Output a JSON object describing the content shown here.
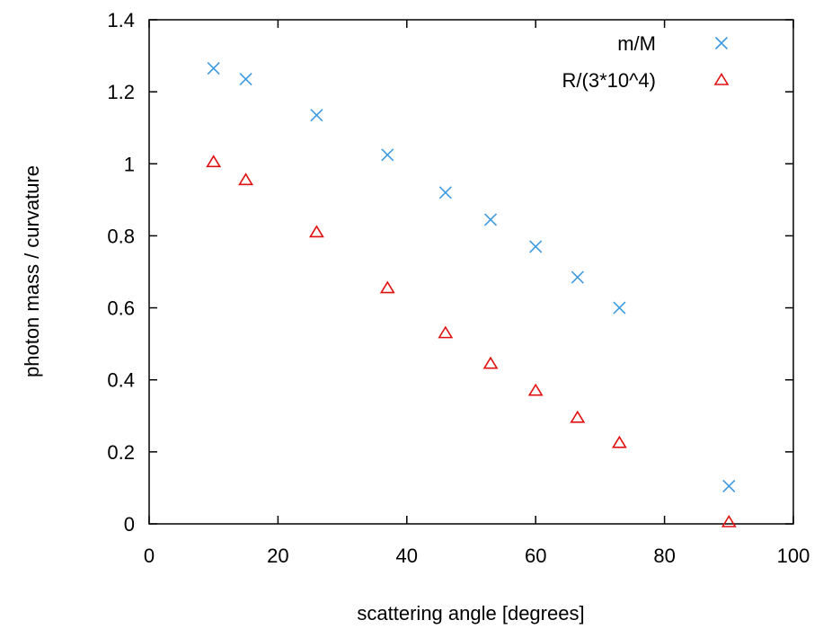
{
  "chart_data": {
    "type": "scatter",
    "xlabel": "scattering angle [degrees]",
    "ylabel": "photon mass / curvature",
    "xlim": [
      0,
      100
    ],
    "ylim": [
      0,
      1.4
    ],
    "x_ticks": [
      "0",
      "20",
      "40",
      "60",
      "80",
      "100"
    ],
    "y_ticks": [
      "0",
      "0.2",
      "0.4",
      "0.6",
      "0.8",
      "1",
      "1.2",
      "1.4"
    ],
    "grid": false,
    "legend_position": "top-right",
    "series": [
      {
        "name": "m/M",
        "marker": "x",
        "color": "#3d9be0",
        "x": [
          10,
          15,
          26,
          37,
          46,
          53,
          60,
          66.5,
          73,
          90
        ],
        "y": [
          1.265,
          1.235,
          1.135,
          1.025,
          0.92,
          0.845,
          0.77,
          0.685,
          0.6,
          0.105
        ]
      },
      {
        "name": "R/(3*10^4)",
        "marker": "triangle",
        "color": "#e01010",
        "x": [
          10,
          15,
          26,
          37,
          46,
          53,
          60,
          66.5,
          73,
          90
        ],
        "y": [
          1.005,
          0.955,
          0.81,
          0.655,
          0.53,
          0.445,
          0.37,
          0.295,
          0.225,
          0.005
        ]
      }
    ]
  }
}
